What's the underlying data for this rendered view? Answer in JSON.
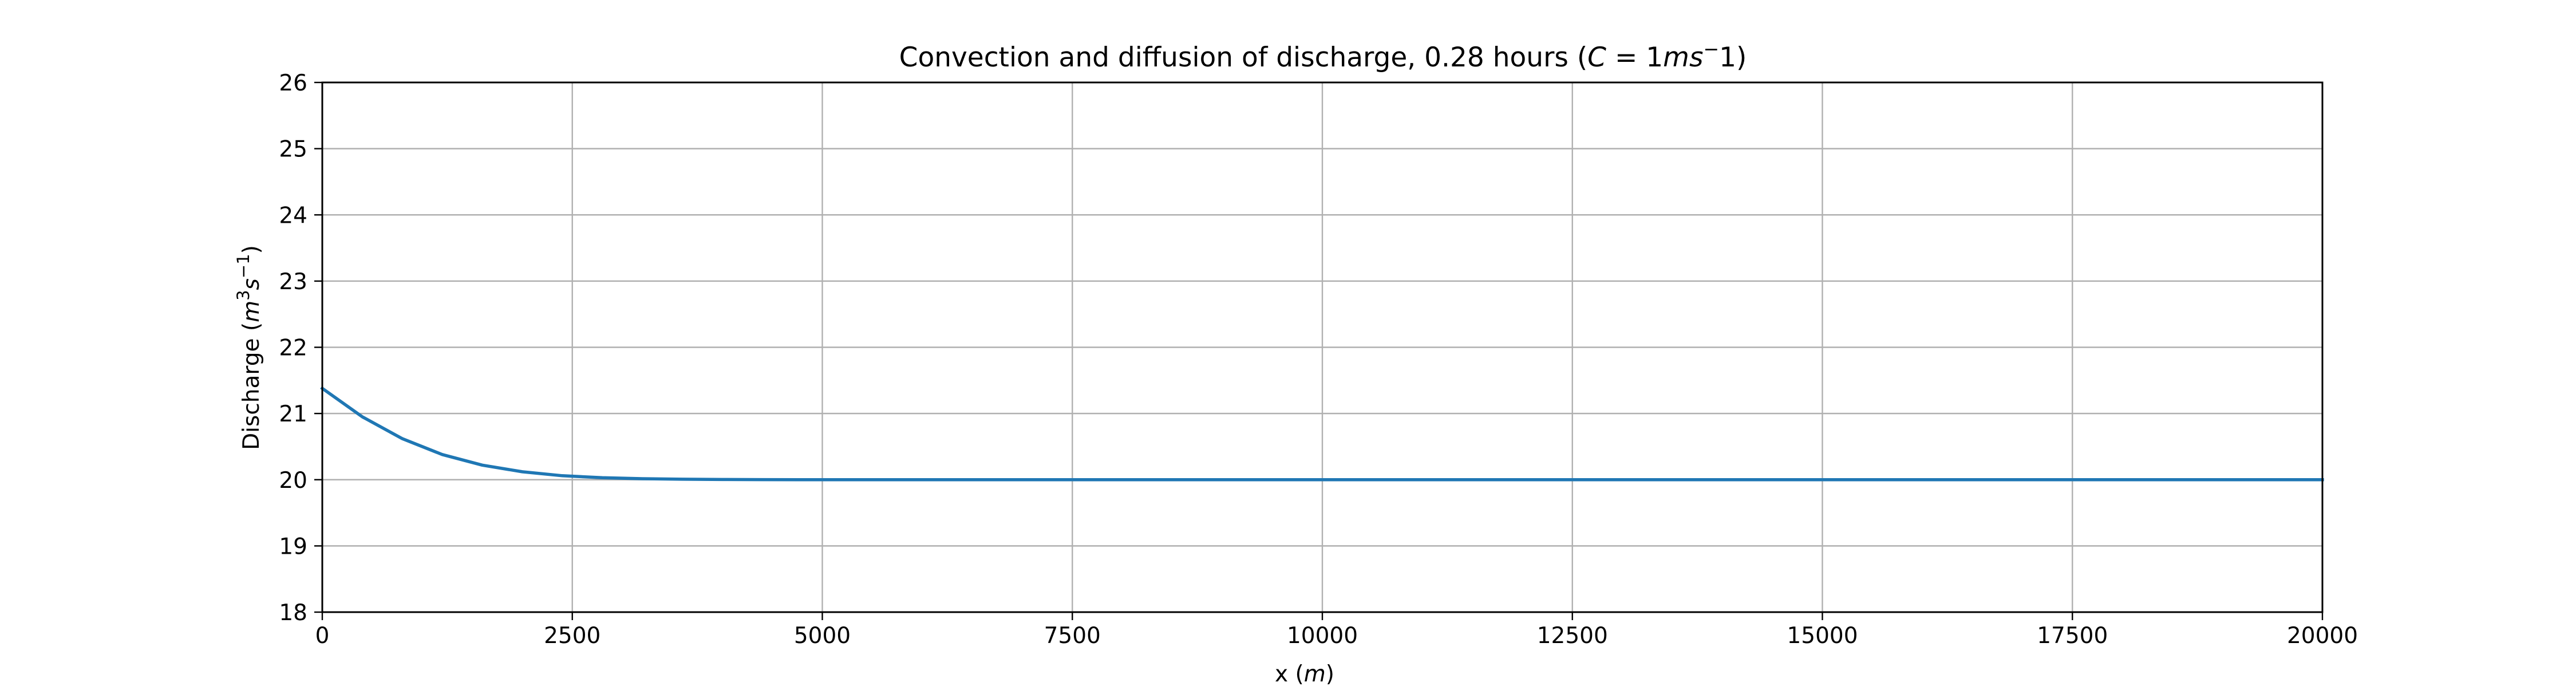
{
  "chart_data": {
    "type": "line",
    "title": {
      "prefix": "Convection and diffusion of discharge, 0.28 hours (",
      "c_symbol": "C",
      "equals": " = 1",
      "unit": "ms",
      "unit_exp": "−",
      "tail": "1)"
    },
    "xlabel": {
      "prefix": "x (",
      "unit": "m",
      "suffix": ")"
    },
    "ylabel": {
      "prefix": "Discharge (",
      "unit1": "m",
      "exp1": "3",
      "unit2": "s",
      "exp2": "−1",
      "suffix": ")"
    },
    "xlim": [
      0,
      20000
    ],
    "ylim": [
      18,
      26
    ],
    "x_ticks": [
      0,
      2500,
      5000,
      7500,
      10000,
      12500,
      15000,
      17500,
      20000
    ],
    "y_ticks": [
      18,
      19,
      20,
      21,
      22,
      23,
      24,
      25,
      26
    ],
    "grid": true,
    "series": [
      {
        "color": "#1f77b4",
        "x": [
          0,
          400,
          800,
          1200,
          1600,
          2000,
          2400,
          2800,
          3200,
          3600,
          4000,
          4400,
          4800,
          5200,
          6000,
          8000,
          10000,
          12000,
          14000,
          16000,
          18000,
          20000
        ],
        "y": [
          21.38,
          20.95,
          20.62,
          20.38,
          20.22,
          20.12,
          20.06,
          20.03,
          20.015,
          20.007,
          20.003,
          20.001,
          20.0,
          20.0,
          20.0,
          20.0,
          20.0,
          20.0,
          20.0,
          20.0,
          20.0,
          20.0
        ]
      }
    ]
  }
}
